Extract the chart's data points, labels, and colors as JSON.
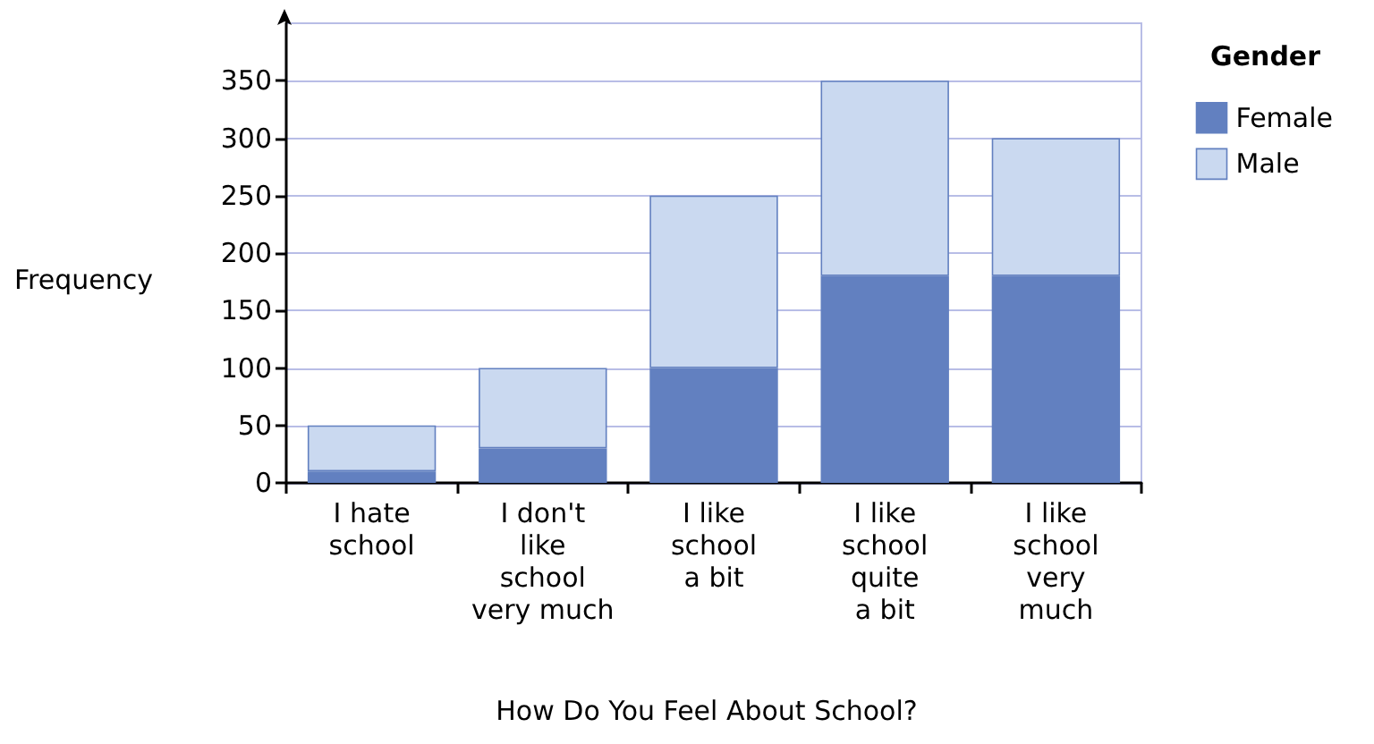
{
  "chart_data": {
    "type": "bar",
    "stacked": true,
    "xlabel": "How Do You Feel About School?",
    "ylabel": "Frequency",
    "legend_title": "Gender",
    "categories": [
      "I hate\nschool",
      "I don't\nlike\nschool\nvery much",
      "I like\nschool\na bit",
      "I like\nschool\nquite\na bit",
      "I like\nschool\nvery\nmuch"
    ],
    "series": [
      {
        "name": "Female",
        "color": "#6280c0",
        "values": [
          10,
          30,
          100,
          180,
          180
        ]
      },
      {
        "name": "Male",
        "color": "#cad9f0",
        "values": [
          40,
          70,
          150,
          170,
          120
        ]
      }
    ],
    "ylim": [
      0,
      400
    ],
    "yticks": [
      0,
      50,
      100,
      150,
      200,
      250,
      300,
      350
    ],
    "grid": "y",
    "legend": "top right"
  }
}
